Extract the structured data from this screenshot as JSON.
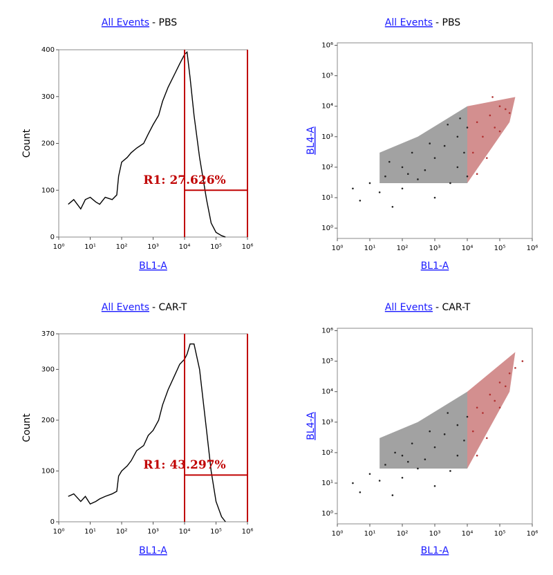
{
  "chart_data": [
    {
      "type": "line",
      "title_link": "All Events",
      "title": "- PBS",
      "x_label": "BL1-A",
      "y_label": "Count",
      "xscale": "log",
      "xlim": [
        1,
        1000000
      ],
      "ylim": [
        0,
        400
      ],
      "xticks": [
        {
          "value": 1,
          "label": "10⁰"
        },
        {
          "value": 10,
          "label": "10¹"
        },
        {
          "value": 100,
          "label": "10²"
        },
        {
          "value": 1000,
          "label": "10³"
        },
        {
          "value": 10000,
          "label": "10⁴"
        },
        {
          "value": 100000,
          "label": "10⁵"
        },
        {
          "value": 1000000,
          "label": "10⁶"
        }
      ],
      "yticks": [
        0,
        100,
        200,
        300,
        400
      ],
      "x": [
        2,
        3,
        5,
        7,
        10,
        15,
        20,
        30,
        50,
        70,
        80,
        100,
        150,
        200,
        300,
        500,
        700,
        1000,
        1500,
        2000,
        3000,
        5000,
        7000,
        10000,
        12000,
        15000,
        20000,
        30000,
        50000,
        70000,
        100000,
        150000,
        200000
      ],
      "values": [
        70,
        80,
        60,
        80,
        85,
        75,
        70,
        85,
        80,
        90,
        130,
        160,
        170,
        180,
        190,
        200,
        220,
        240,
        260,
        290,
        320,
        350,
        370,
        390,
        395,
        340,
        260,
        170,
        80,
        30,
        10,
        3,
        0
      ],
      "color": "#000000",
      "gate": {
        "x": [
          10000,
          1000000
        ],
        "y": 100,
        "label": "R1: 27.626%",
        "color": "#c00000"
      }
    },
    {
      "type": "scatter",
      "title_link": "All Events",
      "title": "- PBS",
      "x_label": "BL1-A",
      "y_label": "BL4-A",
      "xscale": "log",
      "yscale": "log",
      "xlim": [
        1,
        1000000
      ],
      "ylim": [
        0.46,
        1200000
      ],
      "xticks": [
        {
          "value": 1,
          "label": "10⁰"
        },
        {
          "value": 10,
          "label": "10¹"
        },
        {
          "value": 100,
          "label": "10²"
        },
        {
          "value": 1000,
          "label": "10³"
        },
        {
          "value": 10000,
          "label": "10⁴"
        },
        {
          "value": 100000,
          "label": "10⁵"
        },
        {
          "value": 1000000,
          "label": "10⁶"
        }
      ],
      "yticks": [
        {
          "value": 1,
          "label": "10⁰"
        },
        {
          "value": 10,
          "label": "10¹"
        },
        {
          "value": 100,
          "label": "10²"
        },
        {
          "value": 1000,
          "label": "10³"
        },
        {
          "value": 10000,
          "label": "10⁴"
        },
        {
          "value": 100000,
          "label": "10⁵"
        },
        {
          "value": 1000000,
          "label": "10⁶"
        }
      ],
      "series": [
        {
          "color": "#222222",
          "x": [
            3,
            5,
            10,
            20,
            30,
            50,
            100,
            100,
            200,
            300,
            500,
            1000,
            1000,
            2000,
            3000,
            5000,
            5000,
            8000,
            10000,
            10000,
            40,
            150,
            700,
            2500,
            6000
          ],
          "values": [
            20,
            8,
            30,
            15,
            50,
            5,
            100,
            20,
            300,
            40,
            80,
            200,
            10,
            500,
            30,
            1000,
            100,
            300,
            2000,
            50,
            150,
            60,
            600,
            2500,
            4000
          ]
        },
        {
          "color": "#b03030",
          "x": [
            15000,
            20000,
            30000,
            50000,
            70000,
            100000,
            150000,
            20000,
            40000,
            100000,
            200000,
            60000
          ],
          "values": [
            300,
            3000,
            1000,
            5000,
            2000,
            10000,
            8000,
            60,
            200,
            1500,
            6000,
            20000
          ]
        }
      ]
    },
    {
      "type": "line",
      "title_link": "All Events",
      "title": "- CAR-T",
      "x_label": "BL1-A",
      "y_label": "Count",
      "xscale": "log",
      "xlim": [
        1,
        1000000
      ],
      "ylim": [
        0,
        370
      ],
      "xticks": [
        {
          "value": 1,
          "label": "10⁰"
        },
        {
          "value": 10,
          "label": "10¹"
        },
        {
          "value": 100,
          "label": "10²"
        },
        {
          "value": 1000,
          "label": "10³"
        },
        {
          "value": 10000,
          "label": "10⁴"
        },
        {
          "value": 100000,
          "label": "10⁵"
        },
        {
          "value": 1000000,
          "label": "10⁶"
        }
      ],
      "yticks": [
        0,
        100,
        200,
        300,
        370
      ],
      "x": [
        2,
        3,
        5,
        7,
        10,
        15,
        20,
        30,
        50,
        70,
        80,
        100,
        150,
        200,
        300,
        500,
        700,
        1000,
        1500,
        2000,
        3000,
        5000,
        7000,
        10000,
        12000,
        15000,
        20000,
        30000,
        50000,
        70000,
        100000,
        150000,
        200000
      ],
      "values": [
        50,
        55,
        40,
        50,
        35,
        40,
        45,
        50,
        55,
        60,
        90,
        100,
        110,
        120,
        140,
        150,
        170,
        180,
        200,
        230,
        260,
        290,
        310,
        320,
        330,
        350,
        350,
        300,
        180,
        100,
        40,
        10,
        0
      ],
      "color": "#000000",
      "gate": {
        "x": [
          10000,
          1000000
        ],
        "y": 92,
        "label": "R1: 43.297%",
        "color": "#c00000"
      }
    },
    {
      "type": "scatter",
      "title_link": "All Events",
      "title": "- CAR-T",
      "x_label": "BL1-A",
      "y_label": "BL4-A",
      "xscale": "log",
      "yscale": "log",
      "xlim": [
        1,
        1000000
      ],
      "ylim": [
        0.46,
        1200000
      ],
      "xticks": [
        {
          "value": 1,
          "label": "10⁰"
        },
        {
          "value": 10,
          "label": "10¹"
        },
        {
          "value": 100,
          "label": "10²"
        },
        {
          "value": 1000,
          "label": "10³"
        },
        {
          "value": 10000,
          "label": "10⁴"
        },
        {
          "value": 100000,
          "label": "10⁵"
        },
        {
          "value": 1000000,
          "label": "10⁶"
        }
      ],
      "yticks": [
        {
          "value": 1,
          "label": "10⁰"
        },
        {
          "value": 10,
          "label": "10¹"
        },
        {
          "value": 100,
          "label": "10²"
        },
        {
          "value": 1000,
          "label": "10³"
        },
        {
          "value": 10000,
          "label": "10⁴"
        },
        {
          "value": 100000,
          "label": "10⁵"
        },
        {
          "value": 1000000,
          "label": "10⁶"
        }
      ],
      "series": [
        {
          "color": "#222222",
          "x": [
            3,
            5,
            10,
            20,
            30,
            50,
            100,
            100,
            200,
            300,
            500,
            1000,
            1000,
            2000,
            3000,
            5000,
            5000,
            8000,
            10000,
            60,
            150,
            700,
            2500
          ],
          "values": [
            10,
            5,
            20,
            12,
            40,
            4,
            80,
            15,
            200,
            30,
            60,
            150,
            8,
            400,
            25,
            800,
            80,
            250,
            1500,
            100,
            50,
            500,
            2000
          ]
        },
        {
          "color": "#b03030",
          "x": [
            15000,
            20000,
            30000,
            50000,
            70000,
            100000,
            150000,
            200000,
            300000,
            500000,
            20000,
            40000,
            100000
          ],
          "values": [
            500,
            3000,
            2000,
            8000,
            5000,
            20000,
            15000,
            40000,
            60000,
            100000,
            80,
            300,
            3000
          ]
        }
      ]
    }
  ]
}
